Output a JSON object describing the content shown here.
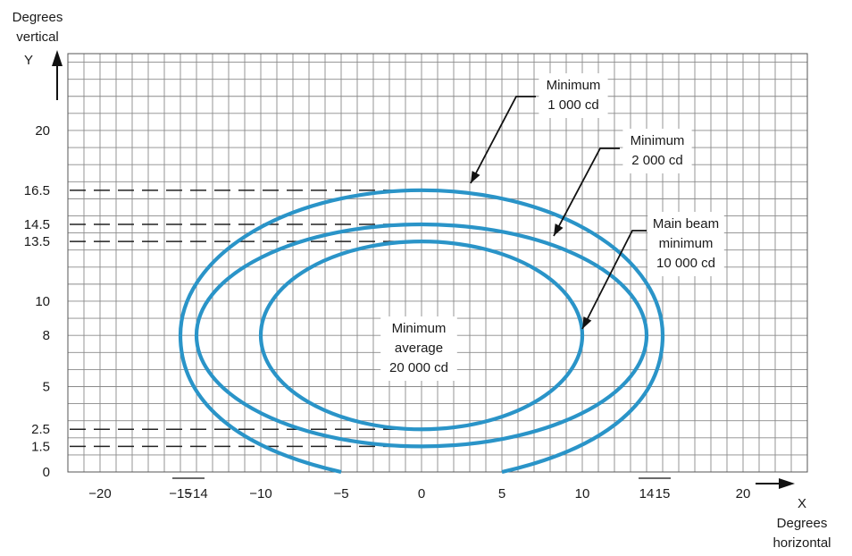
{
  "chart_data": {
    "type": "line",
    "xaxis": {
      "label_line1": "Degrees",
      "label_line2": "horizontal",
      "letter": "X",
      "range": [
        -22,
        24
      ],
      "ticks": [
        -20,
        -15,
        -14,
        -10,
        -5,
        0,
        5,
        10,
        14,
        15,
        20
      ],
      "tick_labels": [
        "−20",
        "−15",
        "−14",
        "−10",
        "−5",
        "0",
        "5",
        "10",
        "14",
        "15",
        "20"
      ]
    },
    "yaxis": {
      "label_line1": "Degrees",
      "label_line2": "vertical",
      "letter": "Y",
      "range": [
        0,
        24.5
      ],
      "ticks": [
        0,
        1.5,
        2.5,
        5,
        8,
        10,
        13.5,
        14.5,
        16.5,
        20
      ],
      "tick_labels": [
        "0",
        "1.5",
        "2.5",
        "5",
        "8",
        "10",
        "13.5",
        "14.5",
        "16.5",
        "20"
      ]
    },
    "grid": true,
    "grid_step": 1,
    "line_color": "#2a94c8",
    "series": [
      {
        "annotation": [
          "Minimum",
          "1 000 cd"
        ],
        "shape": "open-ellipse",
        "center": [
          0,
          8
        ],
        "half_width": 15,
        "top": 16.5,
        "bottom_ends_x": [
          -5,
          5
        ]
      },
      {
        "annotation": [
          "Minimum",
          "2 000 cd"
        ],
        "shape": "closed-ellipse",
        "center": [
          0,
          8
        ],
        "half_width": 14,
        "top": 14.5,
        "bottom": 1.5
      },
      {
        "annotation": [
          "Main beam",
          "minimum",
          "10 000 cd"
        ],
        "shape": "closed-ellipse",
        "center": [
          0,
          8
        ],
        "half_width": 10,
        "top": 13.5,
        "bottom": 2.5
      }
    ],
    "dashed_reference_lines_y": [
      16.5,
      14.5,
      13.5,
      2.5,
      1.5
    ],
    "center_annotation": [
      "Minimum",
      "average",
      "20 000 cd"
    ]
  }
}
